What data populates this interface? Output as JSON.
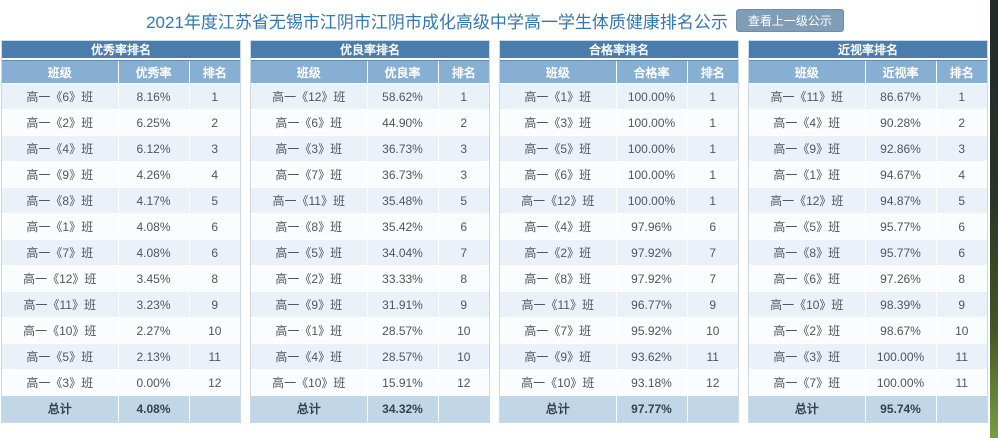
{
  "page": {
    "title": "2021年度江苏省无锡市江阴市江阴市成化高级中学高一学生体质健康排名公示",
    "view_parent_button": "查看上一级公示"
  },
  "columns": {
    "class_label": "班级",
    "rank_label": "排名"
  },
  "colors": {
    "title_text": "#3377b1",
    "caption_bg": "#4a7dad",
    "column_header_bg": "#87afd3",
    "row_alt_bg": "#eaf1f8",
    "total_row_bg": "#c1d7e8",
    "button_bg": "#7f9db7"
  },
  "tables": [
    {
      "caption": "优秀率排名",
      "rate_label": "优秀率",
      "rows": [
        {
          "class": "高一《6》班",
          "rate": "8.16%",
          "rank": "1"
        },
        {
          "class": "高一《2》班",
          "rate": "6.25%",
          "rank": "2"
        },
        {
          "class": "高一《4》班",
          "rate": "6.12%",
          "rank": "3"
        },
        {
          "class": "高一《9》班",
          "rate": "4.26%",
          "rank": "4"
        },
        {
          "class": "高一《8》班",
          "rate": "4.17%",
          "rank": "5"
        },
        {
          "class": "高一《1》班",
          "rate": "4.08%",
          "rank": "6"
        },
        {
          "class": "高一《7》班",
          "rate": "4.08%",
          "rank": "6"
        },
        {
          "class": "高一《12》班",
          "rate": "3.45%",
          "rank": "8"
        },
        {
          "class": "高一《11》班",
          "rate": "3.23%",
          "rank": "9"
        },
        {
          "class": "高一《10》班",
          "rate": "2.27%",
          "rank": "10"
        },
        {
          "class": "高一《5》班",
          "rate": "2.13%",
          "rank": "11"
        },
        {
          "class": "高一《3》班",
          "rate": "0.00%",
          "rank": "12"
        }
      ],
      "total_label": "总计",
      "total_rate": "4.08%"
    },
    {
      "caption": "优良率排名",
      "rate_label": "优良率",
      "rows": [
        {
          "class": "高一《12》班",
          "rate": "58.62%",
          "rank": "1"
        },
        {
          "class": "高一《6》班",
          "rate": "44.90%",
          "rank": "2"
        },
        {
          "class": "高一《3》班",
          "rate": "36.73%",
          "rank": "3"
        },
        {
          "class": "高一《7》班",
          "rate": "36.73%",
          "rank": "3"
        },
        {
          "class": "高一《11》班",
          "rate": "35.48%",
          "rank": "5"
        },
        {
          "class": "高一《8》班",
          "rate": "35.42%",
          "rank": "6"
        },
        {
          "class": "高一《5》班",
          "rate": "34.04%",
          "rank": "7"
        },
        {
          "class": "高一《2》班",
          "rate": "33.33%",
          "rank": "8"
        },
        {
          "class": "高一《9》班",
          "rate": "31.91%",
          "rank": "9"
        },
        {
          "class": "高一《1》班",
          "rate": "28.57%",
          "rank": "10"
        },
        {
          "class": "高一《4》班",
          "rate": "28.57%",
          "rank": "10"
        },
        {
          "class": "高一《10》班",
          "rate": "15.91%",
          "rank": "12"
        }
      ],
      "total_label": "总计",
      "total_rate": "34.32%"
    },
    {
      "caption": "合格率排名",
      "rate_label": "合格率",
      "rows": [
        {
          "class": "高一《1》班",
          "rate": "100.00%",
          "rank": "1"
        },
        {
          "class": "高一《3》班",
          "rate": "100.00%",
          "rank": "1"
        },
        {
          "class": "高一《5》班",
          "rate": "100.00%",
          "rank": "1"
        },
        {
          "class": "高一《6》班",
          "rate": "100.00%",
          "rank": "1"
        },
        {
          "class": "高一《12》班",
          "rate": "100.00%",
          "rank": "1"
        },
        {
          "class": "高一《4》班",
          "rate": "97.96%",
          "rank": "6"
        },
        {
          "class": "高一《2》班",
          "rate": "97.92%",
          "rank": "7"
        },
        {
          "class": "高一《8》班",
          "rate": "97.92%",
          "rank": "7"
        },
        {
          "class": "高一《11》班",
          "rate": "96.77%",
          "rank": "9"
        },
        {
          "class": "高一《7》班",
          "rate": "95.92%",
          "rank": "10"
        },
        {
          "class": "高一《9》班",
          "rate": "93.62%",
          "rank": "11"
        },
        {
          "class": "高一《10》班",
          "rate": "93.18%",
          "rank": "12"
        }
      ],
      "total_label": "总计",
      "total_rate": "97.77%"
    },
    {
      "caption": "近视率排名",
      "rate_label": "近视率",
      "rows": [
        {
          "class": "高一《11》班",
          "rate": "86.67%",
          "rank": "1"
        },
        {
          "class": "高一《4》班",
          "rate": "90.28%",
          "rank": "2"
        },
        {
          "class": "高一《9》班",
          "rate": "92.86%",
          "rank": "3"
        },
        {
          "class": "高一《1》班",
          "rate": "94.67%",
          "rank": "4"
        },
        {
          "class": "高一《12》班",
          "rate": "94.87%",
          "rank": "5"
        },
        {
          "class": "高一《5》班",
          "rate": "95.77%",
          "rank": "6"
        },
        {
          "class": "高一《8》班",
          "rate": "95.77%",
          "rank": "6"
        },
        {
          "class": "高一《6》班",
          "rate": "97.26%",
          "rank": "8"
        },
        {
          "class": "高一《10》班",
          "rate": "98.39%",
          "rank": "9"
        },
        {
          "class": "高一《2》班",
          "rate": "98.67%",
          "rank": "10"
        },
        {
          "class": "高一《3》班",
          "rate": "100.00%",
          "rank": "11"
        },
        {
          "class": "高一《7》班",
          "rate": "100.00%",
          "rank": "11"
        }
      ],
      "total_label": "总计",
      "total_rate": "95.74%"
    }
  ]
}
